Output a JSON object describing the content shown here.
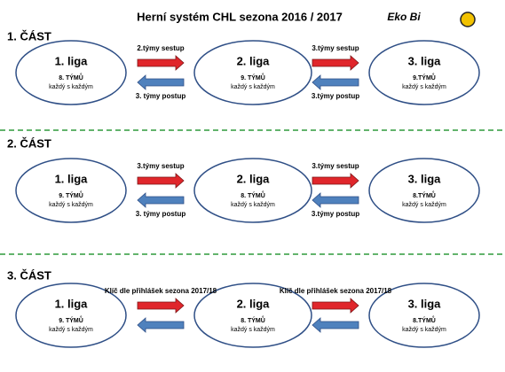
{
  "header": {
    "title": "Herní systém CHL sezona 2016 / 2017",
    "logo": "Eko Bi"
  },
  "sections": [
    {
      "title": "1. ČÁST",
      "leagues": [
        {
          "name": "1. liga",
          "teams": "8. TÝMŮ",
          "format": "každý s každým"
        },
        {
          "name": "2. liga",
          "teams": "9. TÝMŮ",
          "format": "každý s každým"
        },
        {
          "name": "3. liga",
          "teams": "9.TÝMŮ",
          "format": "každý s každým"
        }
      ],
      "arrows": [
        {
          "top": "2.týmy sestup",
          "bottom": "3. týmy postup"
        },
        {
          "top": "3.týmy sestup",
          "bottom": "3.týmy postup"
        }
      ]
    },
    {
      "title": "2. ČÁST",
      "leagues": [
        {
          "name": "1. liga",
          "teams": "9. TÝMŮ",
          "format": "každý s každým"
        },
        {
          "name": "2. liga",
          "teams": "8. TÝMŮ",
          "format": "každý s každým"
        },
        {
          "name": "3. liga",
          "teams": "8.TÝMŮ",
          "format": "každý s každým"
        }
      ],
      "arrows": [
        {
          "top": "3.týmy sestup",
          "bottom": "3. týmy postup"
        },
        {
          "top": "3.týmy sestup",
          "bottom": "3.týmy postup"
        }
      ]
    },
    {
      "title": "3. ČÁST",
      "leagues": [
        {
          "name": "1. liga",
          "teams": "9. TÝMŮ",
          "format": "každý s každým"
        },
        {
          "name": "2. liga",
          "teams": "8. TÝMŮ",
          "format": "každý s každým"
        },
        {
          "name": "3. liga",
          "teams": "8.TÝMŮ",
          "format": "každý s každým"
        }
      ],
      "arrows": [
        {
          "top": "Klíč dle přihlášek sezona 2017/18"
        },
        {
          "top": "Klíč dle přihlášek sezona 2017/18"
        }
      ]
    }
  ]
}
